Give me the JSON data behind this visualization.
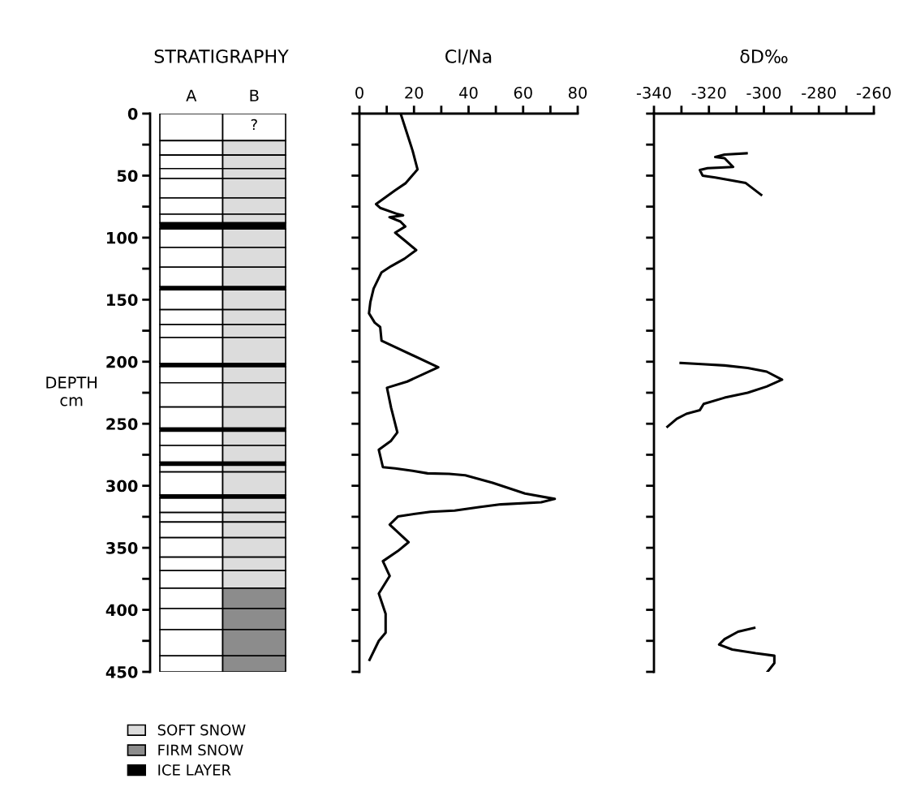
{
  "chart_data": [
    {
      "type": "bar",
      "stacked": true,
      "title": "STRATIGRAPHY",
      "ylabel": "DEPTH\ncm",
      "categories": [
        "A",
        "B"
      ],
      "ylim": [
        450,
        0
      ],
      "yticks": [
        0,
        {
          "value": 25,
          "label": null
        },
        50,
        {
          "value": 75,
          "label": null
        },
        100,
        {
          "value": 125,
          "label": null
        },
        150,
        {
          "value": 175,
          "label": null
        },
        200,
        {
          "value": 225,
          "label": null
        },
        250,
        {
          "value": 275,
          "label": null
        },
        300,
        {
          "value": 325,
          "label": null
        },
        350,
        {
          "value": 375,
          "label": null
        },
        400,
        {
          "value": 425,
          "label": null
        },
        450
      ],
      "legend": "bottom left",
      "annotations": [
        "?"
      ],
      "series": [
        {
          "values": [
            21.8,
            21.8
          ],
          "colors": [
            "#ffffff",
            "#ffffff"
          ]
        },
        {
          "name": "SOFT SNOW",
          "values": [
            11.6,
            11.6
          ],
          "colors": [
            "#ffffff",
            "#dcdcdc"
          ]
        },
        {
          "values": [
            10.9,
            10.9
          ],
          "colors": [
            "#ffffff",
            "#dcdcdc"
          ]
        },
        {
          "values": [
            8,
            8
          ],
          "colors": [
            "#ffffff",
            "#dcdcdc"
          ]
        },
        {
          "values": [
            15.7,
            15.7
          ],
          "colors": [
            "#ffffff",
            "#dcdcdc"
          ]
        },
        {
          "values": [
            13.1,
            13.1
          ],
          "colors": [
            "#ffffff",
            "#dcdcdc"
          ]
        },
        {
          "values": [
            6.9,
            6.9
          ],
          "colors": [
            "#ffffff",
            "#dcdcdc"
          ]
        },
        {
          "name": "ICE LAYER",
          "values": [
            5,
            5
          ],
          "colors": [
            "#000000",
            "#000000"
          ]
        },
        {
          "values": [
            14.9,
            14.9
          ],
          "colors": [
            "#ffffff",
            "#dcdcdc"
          ]
        },
        {
          "values": [
            15.9,
            15.9
          ],
          "colors": [
            "#ffffff",
            "#dcdcdc"
          ]
        },
        {
          "values": [
            15.7,
            15.7
          ],
          "colors": [
            "#ffffff",
            "#dcdcdc"
          ]
        },
        {
          "values": [
            2.5,
            2.5
          ],
          "colors": [
            "#000000",
            "#000000"
          ]
        },
        {
          "values": [
            16,
            16
          ],
          "colors": [
            "#ffffff",
            "#dcdcdc"
          ]
        },
        {
          "values": [
            12,
            12
          ],
          "colors": [
            "#ffffff",
            "#dcdcdc"
          ]
        },
        {
          "values": [
            10.5,
            10.5
          ],
          "colors": [
            "#ffffff",
            "#dcdcdc"
          ]
        },
        {
          "values": [
            21,
            21
          ],
          "colors": [
            "#ffffff",
            "#dcdcdc"
          ]
        },
        {
          "values": [
            2.5,
            2.5
          ],
          "colors": [
            "#000000",
            "#000000"
          ]
        },
        {
          "values": [
            13,
            13
          ],
          "colors": [
            "#ffffff",
            "#dcdcdc"
          ]
        },
        {
          "values": [
            19.5,
            19.5
          ],
          "colors": [
            "#ffffff",
            "#dcdcdc"
          ]
        },
        {
          "values": [
            17,
            17
          ],
          "colors": [
            "#ffffff",
            "#dcdcdc"
          ]
        },
        {
          "values": [
            2.5,
            2.5
          ],
          "colors": [
            "#000000",
            "#000000"
          ]
        },
        {
          "values": [
            11.5,
            11.5
          ],
          "colors": [
            "#ffffff",
            "#dcdcdc"
          ]
        },
        {
          "values": [
            13.5,
            13.5
          ],
          "colors": [
            "#ffffff",
            "#dcdcdc"
          ]
        },
        {
          "values": [
            2.5,
            2.5
          ],
          "colors": [
            "#000000",
            "#000000"
          ]
        },
        {
          "values": [
            5.4,
            5.4
          ],
          "colors": [
            "#ffffff",
            "#dcdcdc"
          ]
        },
        {
          "values": [
            18.6,
            18.6
          ],
          "colors": [
            "#ffffff",
            "#dcdcdc"
          ]
        },
        {
          "values": [
            2.5,
            2.5
          ],
          "colors": [
            "#000000",
            "#000000"
          ]
        },
        {
          "values": [
            11.6,
            11.6
          ],
          "colors": [
            "#ffffff",
            "#dcdcdc"
          ]
        },
        {
          "values": [
            7.6,
            7.6
          ],
          "colors": [
            "#ffffff",
            "#dcdcdc"
          ]
        },
        {
          "values": [
            12.6,
            12.6
          ],
          "colors": [
            "#ffffff",
            "#dcdcdc"
          ]
        },
        {
          "values": [
            15.7,
            15.7
          ],
          "colors": [
            "#ffffff",
            "#dcdcdc"
          ]
        },
        {
          "values": [
            10.9,
            10.9
          ],
          "colors": [
            "#ffffff",
            "#dcdcdc"
          ]
        },
        {
          "values": [
            14.2,
            14.2
          ],
          "colors": [
            "#ffffff",
            "#dcdcdc"
          ]
        },
        {
          "name": "FIRM SNOW",
          "values": [
            16.4,
            16.4
          ],
          "colors": [
            "#ffffff",
            "#8c8c8c"
          ]
        },
        {
          "values": [
            17,
            17
          ],
          "colors": [
            "#ffffff",
            "#8c8c8c"
          ]
        },
        {
          "values": [
            21.1,
            21.1
          ],
          "colors": [
            "#ffffff",
            "#8c8c8c"
          ]
        },
        {
          "values": [
            12.9,
            12.9
          ],
          "colors": [
            "#ffffff",
            "#8c8c8c"
          ]
        }
      ]
    },
    {
      "type": "line",
      "title": "Cl/Na",
      "orientation": "horizontal",
      "xlim": [
        0,
        80
      ],
      "xticks": [
        0,
        {
          "value": 10,
          "label": null
        },
        20,
        {
          "value": 30,
          "label": null
        },
        40,
        {
          "value": 50,
          "label": null
        },
        60,
        {
          "value": 70,
          "label": null
        },
        80
      ],
      "ylim": [
        450,
        0
      ],
      "yticks": [
        {
          "value": 0,
          "label": null
        },
        {
          "value": 25,
          "label": null
        },
        {
          "value": 50,
          "label": null
        },
        {
          "value": 75,
          "label": null
        },
        {
          "value": 100,
          "label": null
        },
        {
          "value": 125,
          "label": null
        },
        {
          "value": 150,
          "label": null
        },
        {
          "value": 175,
          "label": null
        },
        {
          "value": 200,
          "label": null
        },
        {
          "value": 225,
          "label": null
        },
        {
          "value": 250,
          "label": null
        },
        {
          "value": 275,
          "label": null
        },
        {
          "value": 300,
          "label": null
        },
        {
          "value": 325,
          "label": null
        },
        {
          "value": 350,
          "label": null
        },
        {
          "value": 375,
          "label": null
        },
        {
          "value": 400,
          "label": null
        },
        {
          "value": 425,
          "label": null
        },
        {
          "value": 450,
          "label": null
        }
      ],
      "tick_labels": "x",
      "series": [
        {
          "color": "#000000",
          "x": [
            0,
            30,
            45,
            56,
            62,
            73,
            76,
            81,
            82,
            83.5,
            87,
            91,
            96,
            103,
            110,
            117,
            123,
            128,
            141,
            152,
            161,
            168.5,
            172,
            183,
            204.5,
            216,
            221,
            237,
            257,
            263.7,
            271,
            285,
            286,
            288,
            290,
            290.4,
            291.6,
            297.6,
            306.3,
            310.6,
            313.3,
            315,
            317.2,
            320,
            321,
            323.7,
            324.8,
            331.3,
            345.5,
            352.6,
            360.8,
            372.7,
            386.9,
            403.3,
            418.5,
            425,
            440.4
          ],
          "values": [
            15.1,
            19.5,
            21.3,
            17,
            13,
            6.1,
            7.6,
            14,
            16,
            11,
            15,
            16.8,
            13.1,
            17,
            20.8,
            16.5,
            11.6,
            8.1,
            5.2,
            4.0,
            3.5,
            5.6,
            7.6,
            8.1,
            28.9,
            17.5,
            10.1,
            11.6,
            13.9,
            11.6,
            7.1,
            8.6,
            13.1,
            19.5,
            25,
            32.9,
            38.8,
            48.8,
            60.7,
            71.6,
            66.6,
            51.8,
            43.8,
            34.9,
            26,
            17,
            14.1,
            11.1,
            18,
            14.1,
            8.6,
            11.1,
            7.1,
            9.6,
            9.6,
            7.1,
            3.7
          ]
        }
      ]
    },
    {
      "type": "line",
      "title": "δD‰",
      "orientation": "horizontal",
      "xlim": [
        -340,
        -260
      ],
      "xticks": [
        -340,
        {
          "value": -330,
          "label": null
        },
        -320,
        {
          "value": -310,
          "label": null
        },
        -300,
        {
          "value": -290,
          "label": null
        },
        -280,
        {
          "value": -270,
          "label": null
        },
        -260
      ],
      "ylim": [
        450,
        0
      ],
      "yticks": [
        {
          "value": 0,
          "label": null
        },
        {
          "value": 25,
          "label": null
        },
        {
          "value": 50,
          "label": null
        },
        {
          "value": 75,
          "label": null
        },
        {
          "value": 100,
          "label": null
        },
        {
          "value": 125,
          "label": null
        },
        {
          "value": 150,
          "label": null
        },
        {
          "value": 175,
          "label": null
        },
        {
          "value": 200,
          "label": null
        },
        {
          "value": 225,
          "label": null
        },
        {
          "value": 250,
          "label": null
        },
        {
          "value": 275,
          "label": null
        },
        {
          "value": 300,
          "label": null
        },
        {
          "value": 325,
          "label": null
        },
        {
          "value": 350,
          "label": null
        },
        {
          "value": 375,
          "label": null
        },
        {
          "value": 400,
          "label": null
        },
        {
          "value": 425,
          "label": null
        },
        {
          "value": 450,
          "label": null
        }
      ],
      "tick_labels": "x",
      "series": [
        {
          "color": "#000000",
          "x": [
            32,
            33,
            35,
            36,
            43,
            43.5,
            44,
            45.5,
            50,
            51.5,
            54,
            56,
            65.5,
            null,
            201,
            202,
            203,
            205,
            208,
            214.5,
            220,
            225,
            229,
            234,
            239,
            242,
            246,
            252.4,
            null,
            414.5,
            417.6,
            423.6,
            428,
            432,
            435,
            437,
            443,
            450
          ],
          "values": [
            -306.3,
            -314.3,
            -317.7,
            -314.3,
            -311.2,
            -315.7,
            -320.5,
            -323.3,
            -322.3,
            -317.7,
            -311.5,
            -306.6,
            -301,
            null,
            -330.3,
            -322.6,
            -314.3,
            -305.9,
            -299,
            -293.4,
            -299,
            -305.9,
            -314.3,
            -321.9,
            -323.3,
            -328.2,
            -331.7,
            -335.1,
            null,
            -303.5,
            -309.4,
            -314.3,
            -316.3,
            -311.5,
            -303,
            -296.2,
            -296.2,
            -298.7
          ]
        }
      ]
    }
  ]
}
